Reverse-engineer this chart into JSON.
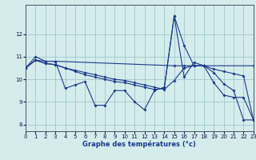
{
  "background_color": "#d5ecec",
  "grid_color": "#a0c8c8",
  "line_color": "#1a3a8c",
  "xlabel": "Graphe des températures (°c)",
  "xlim": [
    0,
    23
  ],
  "ylim": [
    7.7,
    13.3
  ],
  "xticks": [
    0,
    1,
    2,
    3,
    4,
    5,
    6,
    7,
    8,
    9,
    10,
    11,
    12,
    13,
    14,
    15,
    16,
    17,
    18,
    19,
    20,
    21,
    22,
    23
  ],
  "yticks": [
    8,
    9,
    10,
    11,
    12
  ],
  "series": [
    {
      "x": [
        0,
        1,
        2,
        3,
        4,
        5,
        6,
        7,
        8,
        9,
        10,
        11,
        12,
        13,
        14,
        15,
        16,
        17,
        18,
        19,
        20,
        21,
        22,
        23
      ],
      "y": [
        10.5,
        11.0,
        10.8,
        10.8,
        9.6,
        9.75,
        9.9,
        8.85,
        8.85,
        9.5,
        9.5,
        9.0,
        8.65,
        9.5,
        9.65,
        12.8,
        10.1,
        10.75,
        10.6,
        9.85,
        9.3,
        9.2,
        9.2,
        8.2
      ]
    },
    {
      "x": [
        0,
        1,
        2,
        3,
        15,
        16,
        17,
        18,
        23
      ],
      "y": [
        10.5,
        10.85,
        10.8,
        10.8,
        10.6,
        10.6,
        10.6,
        10.6,
        10.6
      ]
    },
    {
      "x": [
        0,
        1,
        2,
        3,
        4,
        5,
        6,
        7,
        8,
        9,
        10,
        11,
        12,
        13,
        14,
        15,
        16,
        17,
        18,
        19,
        20,
        21,
        22,
        23
      ],
      "y": [
        10.5,
        10.85,
        10.7,
        10.65,
        10.5,
        10.4,
        10.3,
        10.2,
        10.1,
        10.0,
        9.95,
        9.85,
        9.75,
        9.65,
        9.55,
        9.95,
        10.5,
        10.6,
        10.6,
        10.45,
        10.35,
        10.25,
        10.15,
        8.2
      ]
    },
    {
      "x": [
        0,
        1,
        2,
        3,
        4,
        5,
        6,
        7,
        8,
        9,
        10,
        11,
        12,
        13,
        14,
        15,
        16,
        17,
        18,
        19,
        20,
        21,
        22,
        23
      ],
      "y": [
        10.5,
        10.85,
        10.7,
        10.65,
        10.5,
        10.35,
        10.2,
        10.1,
        10.0,
        9.9,
        9.85,
        9.75,
        9.65,
        9.55,
        9.6,
        12.8,
        11.5,
        10.6,
        10.6,
        10.3,
        9.8,
        9.5,
        8.2,
        8.2
      ]
    }
  ]
}
